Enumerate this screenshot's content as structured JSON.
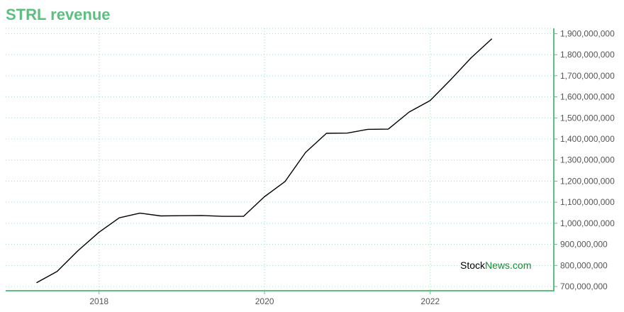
{
  "colors": {
    "title": "#5bbf7f",
    "axis": "#5bbf7f",
    "grid": "#a8dcc0",
    "line": "#000000",
    "tick_text": "#555555",
    "watermark_dark": "#000000",
    "watermark_accent": "#1a8a3a"
  },
  "watermark": {
    "part1": "Stock",
    "part2": "News",
    "part3": ".com"
  },
  "chart_data": {
    "type": "line",
    "title": "STRL revenue",
    "xlabel": "",
    "ylabel": "",
    "x_axis_type": "date",
    "xlim": [
      "2016-11-15",
      "2023-06-30"
    ],
    "ylim": [
      680000000,
      1925000000
    ],
    "x_ticks": [
      "2018-01-01",
      "2020-01-01",
      "2022-01-01"
    ],
    "x_tick_labels": [
      "2018",
      "2020",
      "2022"
    ],
    "y_ticks": [
      700000000,
      800000000,
      900000000,
      1000000000,
      1100000000,
      1200000000,
      1300000000,
      1400000000,
      1500000000,
      1600000000,
      1700000000,
      1800000000,
      1900000000
    ],
    "y_tick_labels": [
      "700,000,000",
      "800,000,000",
      "900,000,000",
      "1,000,000,000",
      "1,100,000,000",
      "1,200,000,000",
      "1,300,000,000",
      "1,400,000,000",
      "1,500,000,000",
      "1,600,000,000",
      "1,700,000,000",
      "1,800,000,000",
      "1,900,000,000"
    ],
    "grid": true,
    "y_axis_position": "right",
    "series": [
      {
        "x": [
          "2017-03-31",
          "2017-06-30",
          "2017-09-30",
          "2017-12-31",
          "2018-03-31",
          "2018-06-30",
          "2018-09-30",
          "2018-12-31",
          "2019-03-31",
          "2019-06-30",
          "2019-09-30",
          "2019-12-31",
          "2020-03-31",
          "2020-06-30",
          "2020-09-30",
          "2020-12-31",
          "2021-03-31",
          "2021-06-30",
          "2021-09-30",
          "2021-12-31",
          "2022-03-31",
          "2022-06-30",
          "2022-09-30"
        ],
        "values": [
          718000000,
          772000000,
          870000000,
          957000000,
          1026000000,
          1048000000,
          1035000000,
          1036000000,
          1037000000,
          1033000000,
          1033000000,
          1126000000,
          1198000000,
          1336000000,
          1427000000,
          1428000000,
          1446000000,
          1447000000,
          1528000000,
          1582000000,
          1680000000,
          1785000000,
          1876000000
        ]
      }
    ]
  }
}
